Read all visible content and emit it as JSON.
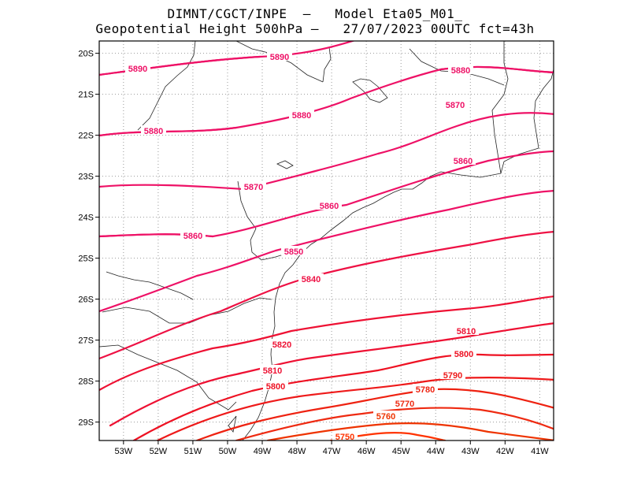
{
  "title": {
    "line1": "DIMNT/CGCT/INPE  –   Model Eta05_M01_",
    "line2": "Geopotential Height 500hPa –   27/07/2023 00UTC fct=43h"
  },
  "map": {
    "lon_range": [
      -53.7,
      -40.6
    ],
    "lat_range": [
      -29.45,
      -19.7
    ],
    "lon_ticks": [
      "53W",
      "52W",
      "51W",
      "50W",
      "49W",
      "48W",
      "47W",
      "46W",
      "45W",
      "44W",
      "43W",
      "42W",
      "41W"
    ],
    "lat_ticks": [
      "20S",
      "21S",
      "22S",
      "23S",
      "24S",
      "25S",
      "26S",
      "27S",
      "28S",
      "29S"
    ],
    "grid": "dotted"
  },
  "colors": {
    "high": "#ee1166",
    "mid": "#ee2244",
    "low": "#ff2200"
  },
  "contours": [
    {
      "label": "5890",
      "color": "#ee1166"
    },
    {
      "label": "5890",
      "color": "#ee1166"
    },
    {
      "label": "5880",
      "color": "#ee1166"
    },
    {
      "label": "5880",
      "color": "#ee1166"
    },
    {
      "label": "5880",
      "color": "#ee1166"
    },
    {
      "label": "5870",
      "color": "#ee1166"
    },
    {
      "label": "5870",
      "color": "#ee1166"
    },
    {
      "label": "5860",
      "color": "#ee1166"
    },
    {
      "label": "5860",
      "color": "#ee1166"
    },
    {
      "label": "5860",
      "color": "#ee1166"
    },
    {
      "label": "5850",
      "color": "#ee1166"
    },
    {
      "label": "5840",
      "color": "#ee1144"
    },
    {
      "label": "5820",
      "color": "#ee1133"
    },
    {
      "label": "5810",
      "color": "#ee1133"
    },
    {
      "label": "5810",
      "color": "#ee1133"
    },
    {
      "label": "5800",
      "color": "#ee1122"
    },
    {
      "label": "5800",
      "color": "#ee1122"
    },
    {
      "label": "5790",
      "color": "#ee1a1a"
    },
    {
      "label": "5780",
      "color": "#ee2211"
    },
    {
      "label": "5770",
      "color": "#ee2a11"
    },
    {
      "label": "5760",
      "color": "#ee3300"
    },
    {
      "label": "5750",
      "color": "#ff3300"
    }
  ]
}
